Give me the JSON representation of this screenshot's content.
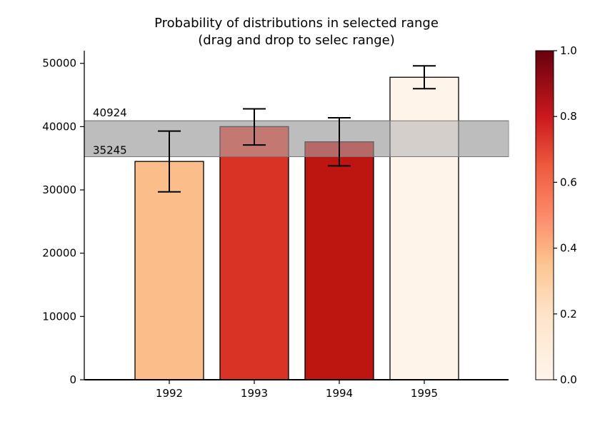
{
  "chart_data": {
    "type": "bar",
    "title_line1": "Probability of distributions in selected range",
    "title_line2": "(drag and drop to selec range)",
    "xlabel": "",
    "ylabel": "",
    "categories": [
      "1992",
      "1993",
      "1994",
      "1995"
    ],
    "values": [
      34500,
      40000,
      37600,
      47800
    ],
    "error_upper": [
      39300,
      42800,
      41400,
      49600
    ],
    "error_lower": [
      29700,
      37100,
      33800,
      46000
    ],
    "bar_colors": [
      "#fbbe8a",
      "#d93325",
      "#bd1510",
      "#fff4e9"
    ],
    "ylim": [
      0,
      52000
    ],
    "yticks": [
      0,
      10000,
      20000,
      30000,
      40000,
      50000
    ],
    "selected_range": {
      "low": 35245,
      "high": 40924,
      "low_label": "35245",
      "high_label": "40924",
      "color": "#b0b0b0"
    },
    "colorbar": {
      "ticks": [
        "0.0",
        "0.2",
        "0.4",
        "0.6",
        "0.8",
        "1.0"
      ],
      "tick_values": [
        0.0,
        0.2,
        0.4,
        0.6,
        0.8,
        1.0
      ],
      "colors": [
        "#fff5eb",
        "#fdd0a2",
        "#fdae6b",
        "#f16913",
        "#d94801",
        "#a50f15",
        "#67000d"
      ]
    },
    "grid": false
  }
}
